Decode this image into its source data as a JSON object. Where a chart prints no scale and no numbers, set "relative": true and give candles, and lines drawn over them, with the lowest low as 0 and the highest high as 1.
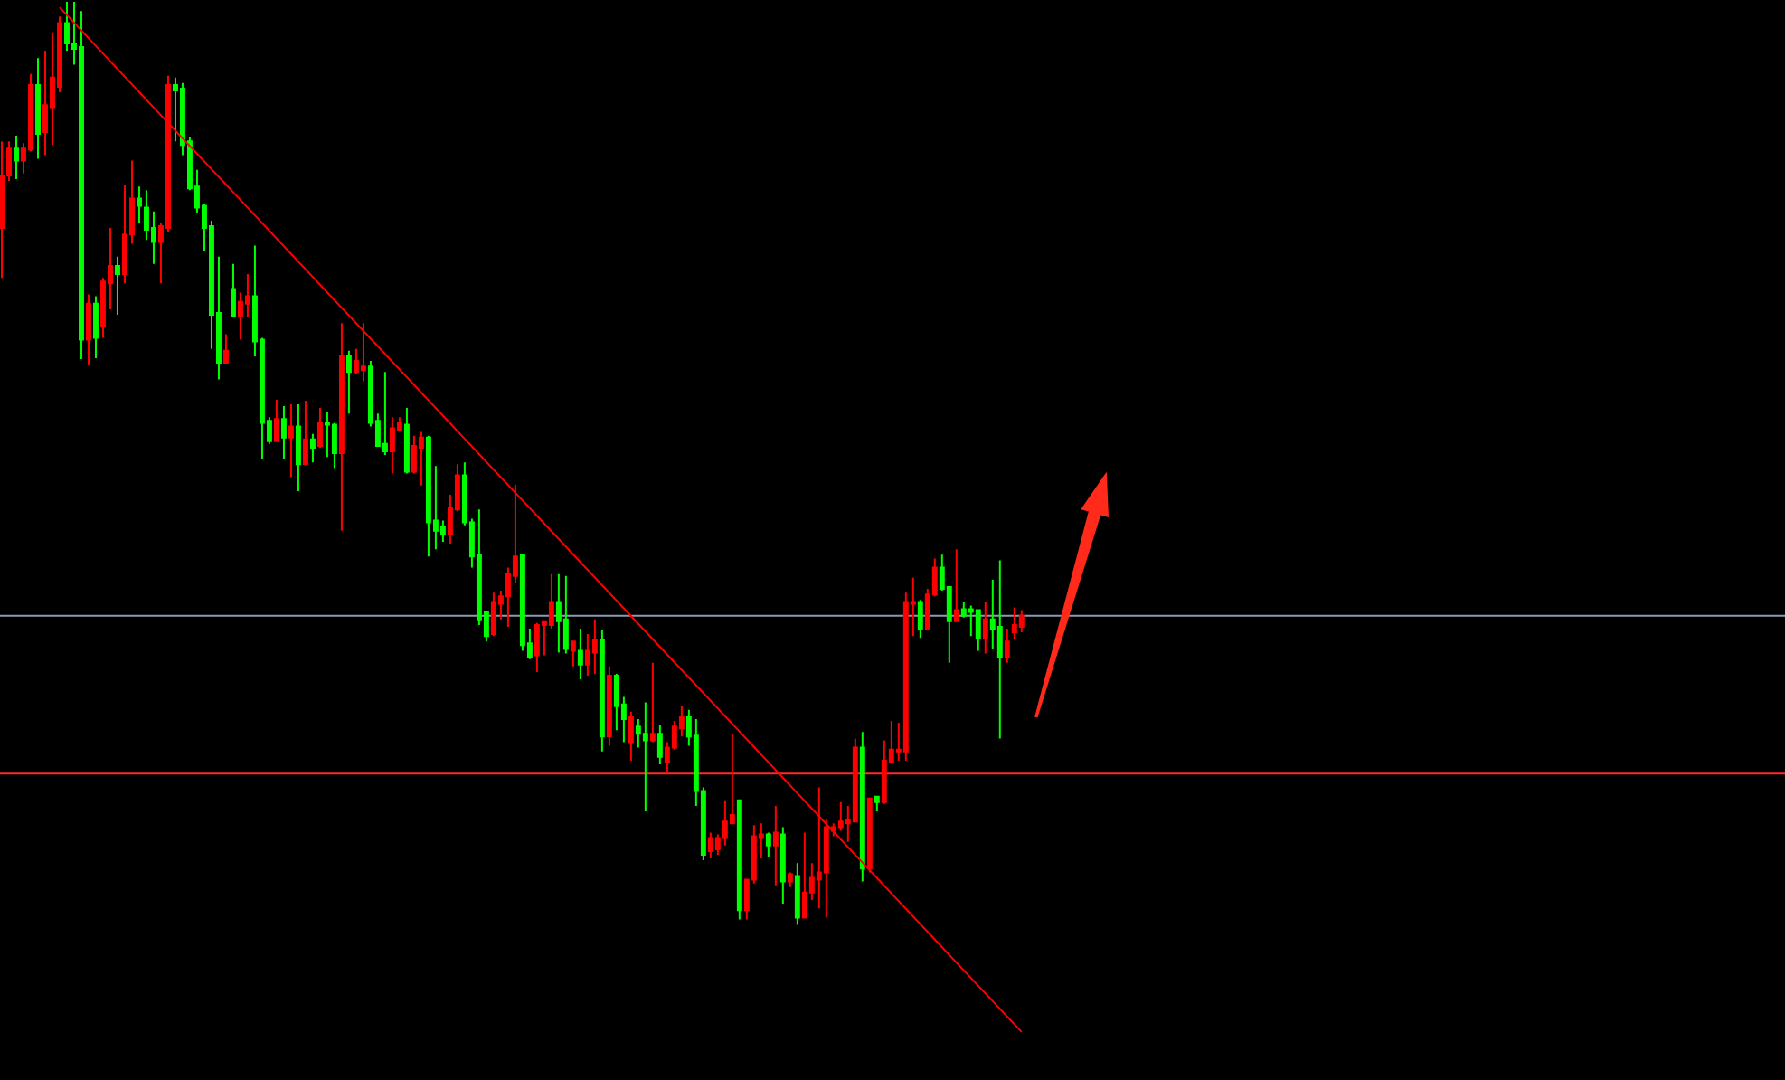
{
  "chart_data": {
    "type": "candlestick",
    "relative": true,
    "categories": [
      null,
      null,
      null,
      null,
      null,
      null,
      null,
      null,
      null,
      null,
      null,
      null,
      null,
      null,
      null,
      null,
      null,
      null,
      null,
      null,
      null,
      null,
      null,
      null,
      null,
      null,
      null,
      null,
      null,
      null,
      null,
      null,
      null,
      null,
      null,
      null,
      null,
      null,
      null,
      null,
      null,
      null,
      null,
      null,
      null,
      null,
      null,
      null,
      null,
      null,
      null,
      null,
      null,
      null,
      null,
      null,
      null,
      null,
      null,
      null,
      null,
      null,
      null,
      null,
      null,
      null,
      null,
      null,
      null,
      null,
      null,
      null,
      null,
      null,
      null,
      null,
      null,
      null,
      null,
      null,
      null,
      null,
      null,
      null,
      null,
      null,
      null,
      null,
      null,
      null,
      null,
      null,
      null,
      null,
      null,
      null,
      null,
      null,
      null,
      null,
      null,
      null,
      null,
      null,
      null,
      null,
      null,
      null,
      null,
      null,
      null,
      null,
      null,
      null,
      null,
      null,
      null,
      null,
      null,
      null,
      null,
      null,
      null,
      null,
      null,
      null,
      null,
      null,
      null,
      null,
      null,
      null,
      null,
      null,
      null,
      null,
      null,
      null,
      null,
      null,
      null,
      null
    ],
    "series": [
      {
        "ohlc": [
          [
            0.755,
            0.849,
            0.701,
            0.812
          ],
          [
            0.812,
            0.849,
            0.806,
            0.841
          ],
          [
            0.841,
            0.855,
            0.808,
            0.828
          ],
          [
            0.828,
            0.847,
            0.814,
            0.841
          ],
          [
            0.84,
            0.922,
            0.838,
            0.91
          ],
          [
            0.91,
            0.939,
            0.83,
            0.857
          ],
          [
            0.859,
            0.947,
            0.834,
            0.888
          ],
          [
            0.886,
            0.967,
            0.845,
            0.918
          ],
          [
            0.908,
            0.984,
            0.902,
            0.977
          ],
          [
            0.977,
            1,
            0.947,
            0.955
          ],
          [
            0.955,
            1,
            0.932,
            0.949
          ],
          [
            0.951,
            0.99,
            0.613,
            0.634
          ],
          [
            0.634,
            0.683,
            0.607,
            0.673
          ],
          [
            0.673,
            0.681,
            0.614,
            0.636
          ],
          [
            0.648,
            0.701,
            0.636,
            0.697
          ],
          [
            0.695,
            0.755,
            0.667,
            0.714
          ],
          [
            0.714,
            0.724,
            0.661,
            0.705
          ],
          [
            0.705,
            0.802,
            0.695,
            0.748
          ],
          [
            0.748,
            0.828,
            0.738,
            0.787
          ],
          [
            0.787,
            0.8,
            0.761,
            0.779
          ],
          [
            0.777,
            0.796,
            0.742,
            0.753
          ],
          [
            0.755,
            0.773,
            0.716,
            0.74
          ],
          [
            0.74,
            0.761,
            0.695,
            0.757
          ],
          [
            0.755,
            0.92,
            0.751,
            0.91
          ],
          [
            0.91,
            0.918,
            0.849,
            0.904
          ],
          [
            0.906,
            0.912,
            0.834,
            0.845
          ],
          [
            0.849,
            0.853,
            0.796,
            0.798
          ],
          [
            0.8,
            0.818,
            0.771,
            0.777
          ],
          [
            0.779,
            0.781,
            0.73,
            0.755
          ],
          [
            0.757,
            0.763,
            0.624,
            0.661
          ],
          [
            0.663,
            0.724,
            0.591,
            0.609
          ],
          [
            0.609,
            0.64,
            0.609,
            0.622
          ],
          [
            0.689,
            0.716,
            0.659,
            0.659
          ],
          [
            0.659,
            0.685,
            0.634,
            0.675
          ],
          [
            0.673,
            0.705,
            0.659,
            0.681
          ],
          [
            0.681,
            0.736,
            0.616,
            0.632
          ],
          [
            0.634,
            0.636,
            0.505,
            0.544
          ],
          [
            0.546,
            0.55,
            0.521,
            0.524
          ],
          [
            0.524,
            0.569,
            0.524,
            0.548
          ],
          [
            0.548,
            0.562,
            0.505,
            0.528
          ],
          [
            0.528,
            0.564,
            0.485,
            0.54
          ],
          [
            0.54,
            0.564,
            0.47,
            0.499
          ],
          [
            0.499,
            0.568,
            0.499,
            0.526
          ],
          [
            0.526,
            0.532,
            0.501,
            0.517
          ],
          [
            0.519,
            0.56,
            0.517,
            0.544
          ],
          [
            0.544,
            0.556,
            0.507,
            0.542
          ],
          [
            0.542,
            0.544,
            0.495,
            0.511
          ],
          [
            0.511,
            0.652,
            0.427,
            0.616
          ],
          [
            0.616,
            0.622,
            0.554,
            0.599
          ],
          [
            0.599,
            0.624,
            0.597,
            0.611
          ],
          [
            0.601,
            0.652,
            0.589,
            0.605
          ],
          [
            0.605,
            0.611,
            0.54,
            0.544
          ],
          [
            0.546,
            0.554,
            0.519,
            0.519
          ],
          [
            0.521,
            0.599,
            0.509,
            0.513
          ],
          [
            0.513,
            0.55,
            0.489,
            0.538
          ],
          [
            0.536,
            0.55,
            0.536,
            0.544
          ],
          [
            0.542,
            0.56,
            0.489,
            0.491
          ],
          [
            0.491,
            0.53,
            0.489,
            0.519
          ],
          [
            0.517,
            0.534,
            0.476,
            0.528
          ],
          [
            0.528,
            0.53,
            0.399,
            0.436
          ],
          [
            0.438,
            0.497,
            0.407,
            0.427
          ],
          [
            0.431,
            0.438,
            0.415,
            0.423
          ],
          [
            0.423,
            0.466,
            0.413,
            0.452
          ],
          [
            0.45,
            0.499,
            0.448,
            0.487
          ],
          [
            0.487,
            0.501,
            0.433,
            0.436
          ],
          [
            0.436,
            0.44,
            0.387,
            0.399
          ],
          [
            0.401,
            0.45,
            0.325,
            0.331
          ],
          [
            0.339,
            0.339,
            0.307,
            0.313
          ],
          [
            0.315,
            0.36,
            0.313,
            0.35
          ],
          [
            0.348,
            0.362,
            0.331,
            0.356
          ],
          [
            0.356,
            0.387,
            0.323,
            0.38
          ],
          [
            0.378,
            0.477,
            0.37,
            0.399
          ],
          [
            0.401,
            0.401,
            0.297,
            0.303
          ],
          [
            0.305,
            0.321,
            0.288,
            0.29
          ],
          [
            0.292,
            0.327,
            0.274,
            0.325
          ],
          [
            0.325,
            0.329,
            0.292,
            0.329
          ],
          [
            0.325,
            0.38,
            0.321,
            0.35
          ],
          [
            0.35,
            0.38,
            0.295,
            0.329
          ],
          [
            0.331,
            0.378,
            0.294,
            0.299
          ],
          [
            0.297,
            0.307,
            0.28,
            0.307
          ],
          [
            0.297,
            0.321,
            0.266,
            0.282
          ],
          [
            0.282,
            0.315,
            0.27,
            0.297
          ],
          [
            0.295,
            0.331,
            0.272,
            0.309
          ],
          [
            0.309,
            0.319,
            0.188,
            0.204
          ],
          [
            0.204,
            0.28,
            0.194,
            0.27
          ],
          [
            0.27,
            0.272,
            0.211,
            0.237
          ],
          [
            0.239,
            0.247,
            0.198,
            0.223
          ],
          [
            0.198,
            0.231,
            0.178,
            0.225
          ],
          [
            0.215,
            0.223,
            0.192,
            0.207
          ],
          [
            0.207,
            0.241,
            0.123,
            0.2
          ],
          [
            0.2,
            0.284,
            0.198,
            0.207
          ],
          [
            0.207,
            0.217,
            0.174,
            0.182
          ],
          [
            0.176,
            0.198,
            0.164,
            0.192
          ],
          [
            0.192,
            0.221,
            0.19,
            0.215
          ],
          [
            0.213,
            0.237,
            0.204,
            0.225
          ],
          [
            0.225,
            0.233,
            0.194,
            0.204
          ],
          [
            0.205,
            0.223,
            0.129,
            0.145
          ],
          [
            0.145,
            0.149,
            0.07,
            0.076
          ],
          [
            0.08,
            0.1,
            0.072,
            0.094
          ],
          [
            0.082,
            0.098,
            0.076,
            0.094
          ],
          [
            0.094,
            0.135,
            0.086,
            0.112
          ],
          [
            0.11,
            0.207,
            0.11,
            0.119
          ],
          [
            0.135,
            0.135,
            0.006,
            0.016
          ],
          [
            0.016,
            0.049,
            0.006,
            0.049
          ],
          [
            0.049,
            0.108,
            0.045,
            0.096
          ],
          [
            0.094,
            0.11,
            0.072,
            0.098
          ],
          [
            0.098,
            0.1,
            0.074,
            0.086
          ],
          [
            0.086,
            0.129,
            0.043,
            0.1
          ],
          [
            0.098,
            0.106,
            0.023,
            0.047
          ],
          [
            0.047,
            0.057,
            0.041,
            0.055
          ],
          [
            0.053,
            0.067,
            0,
            0.008
          ],
          [
            0.008,
            0.1,
            0.008,
            0.035
          ],
          [
            0.035,
            0.067,
            0.027,
            0.051
          ],
          [
            0.049,
            0.149,
            0.018,
            0.057
          ],
          [
            0.057,
            0.114,
            0.008,
            0.106
          ],
          [
            0.102,
            0.11,
            0.096,
            0.106
          ],
          [
            0.106,
            0.133,
            0.102,
            0.112
          ],
          [
            0.11,
            0.129,
            0.09,
            0.114
          ],
          [
            0.112,
            0.202,
            0.112,
            0.192
          ],
          [
            0.192,
            0.209,
            0.047,
            0.061
          ],
          [
            0.061,
            0.137,
            0.057,
            0.137
          ],
          [
            0.139,
            0.139,
            0.123,
            0.133
          ],
          [
            0.133,
            0.2,
            0.131,
            0.178
          ],
          [
            0.176,
            0.221,
            0.176,
            0.19
          ],
          [
            0.188,
            0.219,
            0.178,
            0.19
          ],
          [
            0.188,
            0.36,
            0.178,
            0.35
          ],
          [
            0.348,
            0.376,
            0.313,
            0.35
          ],
          [
            0.35,
            0.352,
            0.311,
            0.321
          ],
          [
            0.321,
            0.364,
            0.321,
            0.358
          ],
          [
            0.358,
            0.397,
            0.356,
            0.387
          ],
          [
            0.387,
            0.401,
            0.362,
            0.364
          ],
          [
            0.366,
            0.366,
            0.284,
            0.329
          ],
          [
            0.329,
            0.407,
            0.329,
            0.341
          ],
          [
            0.342,
            0.35,
            0.333,
            0.335
          ],
          [
            0.342,
            0.346,
            0.313,
            0.339
          ],
          [
            0.341,
            0.342,
            0.297,
            0.311
          ],
          [
            0.311,
            0.35,
            0.294,
            0.331
          ],
          [
            0.331,
            0.374,
            0.299,
            0.321
          ],
          [
            0.323,
            0.395,
            0.202,
            0.29
          ],
          [
            0.29,
            0.321,
            0.284,
            0.307
          ],
          [
            0.317,
            0.344,
            0.309,
            0.325
          ],
          [
            0.323,
            0.341,
            0.317,
            0.335
          ]
        ],
        "colors": [
          "#ff0000",
          "#ff0000",
          "#00ff00",
          "#ff0000",
          "#ff0000",
          "#00ff00",
          "#ff0000",
          "#ff0000",
          "#ff0000",
          "#00ff00",
          "#00ff00",
          "#00ff00",
          "#ff0000",
          "#00ff00",
          "#ff0000",
          "#ff0000",
          "#00ff00",
          "#ff0000",
          "#ff0000",
          "#00ff00",
          "#00ff00",
          "#00ff00",
          "#ff0000",
          "#ff0000",
          "#00ff00",
          "#00ff00",
          "#00ff00",
          "#00ff00",
          "#00ff00",
          "#00ff00",
          "#00ff00",
          "#ff0000",
          "#00ff00",
          "#ff0000",
          "#ff0000",
          "#00ff00",
          "#00ff00",
          "#00ff00",
          "#ff0000",
          "#00ff00",
          "#ff0000",
          "#00ff00",
          "#ff0000",
          "#00ff00",
          "#ff0000",
          "#00ff00",
          "#00ff00",
          "#ff0000",
          "#00ff00",
          "#ff0000",
          "#ff0000",
          "#00ff00",
          "#00ff00",
          "#00ff00",
          "#ff0000",
          "#ff0000",
          "#00ff00",
          "#ff0000",
          "#ff0000",
          "#00ff00",
          "#00ff00",
          "#00ff00",
          "#ff0000",
          "#ff0000",
          "#00ff00",
          "#00ff00",
          "#00ff00",
          "#00ff00",
          "#ff0000",
          "#ff0000",
          "#ff0000",
          "#ff0000",
          "#00ff00",
          "#00ff00",
          "#ff0000",
          "#ff0000",
          "#ff0000",
          "#00ff00",
          "#00ff00",
          "#ff0000",
          "#00ff00",
          "#ff0000",
          "#ff0000",
          "#00ff00",
          "#ff0000",
          "#00ff00",
          "#00ff00",
          "#ff0000",
          "#00ff00",
          "#00ff00",
          "#ff0000",
          "#00ff00",
          "#ff0000",
          "#ff0000",
          "#ff0000",
          "#00ff00",
          "#00ff00",
          "#00ff00",
          "#ff0000",
          "#ff0000",
          "#ff0000",
          "#ff0000",
          "#00ff00",
          "#ff0000",
          "#ff0000",
          "#ff0000",
          "#00ff00",
          "#ff0000",
          "#00ff00",
          "#ff0000",
          "#00ff00",
          "#ff0000",
          "#ff0000",
          "#ff0000",
          "#ff0000",
          "#ff0000",
          "#ff0000",
          "#ff0000",
          "#ff0000",
          "#00ff00",
          "#ff0000",
          "#00ff00",
          "#ff0000",
          "#ff0000",
          "#ff0000",
          "#ff0000",
          "#ff0000",
          "#00ff00",
          "#ff0000",
          "#ff0000",
          "#00ff00",
          "#00ff00",
          "#ff0000",
          "#00ff00",
          "#00ff00",
          "#00ff00",
          "#ff0000",
          "#00ff00",
          "#00ff00",
          "#ff0000",
          "#ff0000",
          "#ff0000"
        ]
      },
      {
        "type": "line",
        "values": [
          null,
          null,
          null,
          null,
          null,
          null,
          null,
          null,
          0.994,
          null,
          null,
          null,
          null,
          null,
          null,
          null,
          null,
          null,
          null,
          null,
          null,
          null,
          null,
          null,
          null,
          null,
          null,
          null,
          null,
          null,
          null,
          null,
          null,
          null,
          null,
          null,
          null,
          null,
          null,
          null,
          null,
          null,
          null,
          null,
          null,
          null,
          null,
          null,
          null,
          null,
          null,
          null,
          null,
          null,
          null,
          null,
          null,
          null,
          null,
          null,
          null,
          null,
          null,
          null,
          null,
          null,
          null,
          null,
          null,
          null,
          null,
          null,
          null,
          null,
          null,
          null,
          null,
          null,
          null,
          null,
          null,
          null,
          null,
          null,
          null,
          null,
          null,
          null,
          null,
          null,
          null,
          null,
          null,
          null,
          null,
          null,
          null,
          null,
          null,
          null,
          null,
          null,
          null,
          null,
          null,
          null,
          null,
          null,
          null,
          null,
          null,
          null,
          null,
          null,
          null,
          null,
          null,
          null,
          null,
          null,
          null,
          null,
          null,
          null,
          null,
          null,
          null,
          null,
          null,
          null,
          null,
          null,
          null,
          null,
          null,
          null,
          null,
          null,
          null,
          null,
          null,
          -0.116
        ],
        "color": "#ff0000"
      }
    ],
    "ref_lines": [
      {
        "axis": "y",
        "value": 0.335,
        "color": "#8c9bb5"
      },
      {
        "axis": "y",
        "value": 0.164,
        "color": "#ff2a2a"
      }
    ]
  }
}
